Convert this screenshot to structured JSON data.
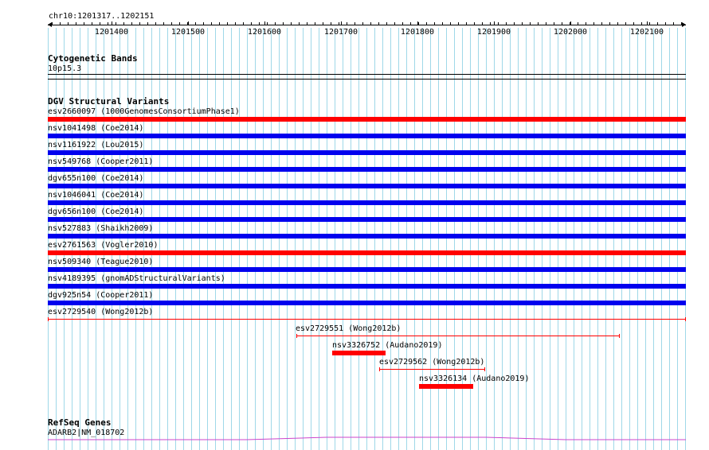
{
  "ruler": {
    "coord_label": "chr10:1201317..1202151",
    "ticks": [
      "1201400",
      "1201500",
      "1201600",
      "1201700",
      "1201800",
      "1201900",
      "1202000",
      "1202100"
    ]
  },
  "cytobands": {
    "title": "Cytogenetic Bands",
    "band": "10p15.3"
  },
  "dgv": {
    "title": "DGV Structural Variants",
    "full_rows": [
      {
        "label": "esv2660097 (1000GenomesConsortiumPhase1)",
        "color": "#ff0000"
      },
      {
        "label": "nsv1041498 (Coe2014)",
        "color": "#0000ee"
      },
      {
        "label": "nsv1161922 (Lou2015)",
        "color": "#0000ee"
      },
      {
        "label": "nsv549768 (Cooper2011)",
        "color": "#0000ee"
      },
      {
        "label": "dgv655n100 (Coe2014)",
        "color": "#0000ee"
      },
      {
        "label": "nsv1046041 (Coe2014)",
        "color": "#0000ee"
      },
      {
        "label": "dgv656n100 (Coe2014)",
        "color": "#0000ee"
      },
      {
        "label": "nsv527883 (Shaikh2009)",
        "color": "#0000ee"
      },
      {
        "label": "esv2761563 (Vogler2010)",
        "color": "#ff0000"
      },
      {
        "label": "nsv509340 (Teague2010)",
        "color": "#0000ee"
      },
      {
        "label": "nsv4189395 (gnomADStructuralVariants)",
        "color": "#0000ee"
      },
      {
        "label": "dgv925n54 (Cooper2011)",
        "color": "#0000ee"
      }
    ],
    "esv2729540": {
      "label": "esv2729540 (Wong2012b)",
      "color": "#ff0000"
    },
    "esv2729551": {
      "label": "esv2729551 (Wong2012b)",
      "color": "#ff0000"
    },
    "nsv3326752": {
      "label": "nsv3326752 (Audano2019)",
      "color": "#ff0000"
    },
    "esv2729562": {
      "label": "esv2729562 (Wong2012b)",
      "color": "#ff0000"
    },
    "nsv3326134": {
      "label": "nsv3326134 (Audano2019)",
      "color": "#ff0000"
    }
  },
  "refseq": {
    "title": "RefSeq Genes",
    "gene": "ADARB2|NM_018702",
    "color": "#cc44cc"
  },
  "colors": {
    "grid": "#9fd8e8",
    "loss": "#ff0000",
    "gain": "#0000ee",
    "gene": "#cc44cc"
  }
}
